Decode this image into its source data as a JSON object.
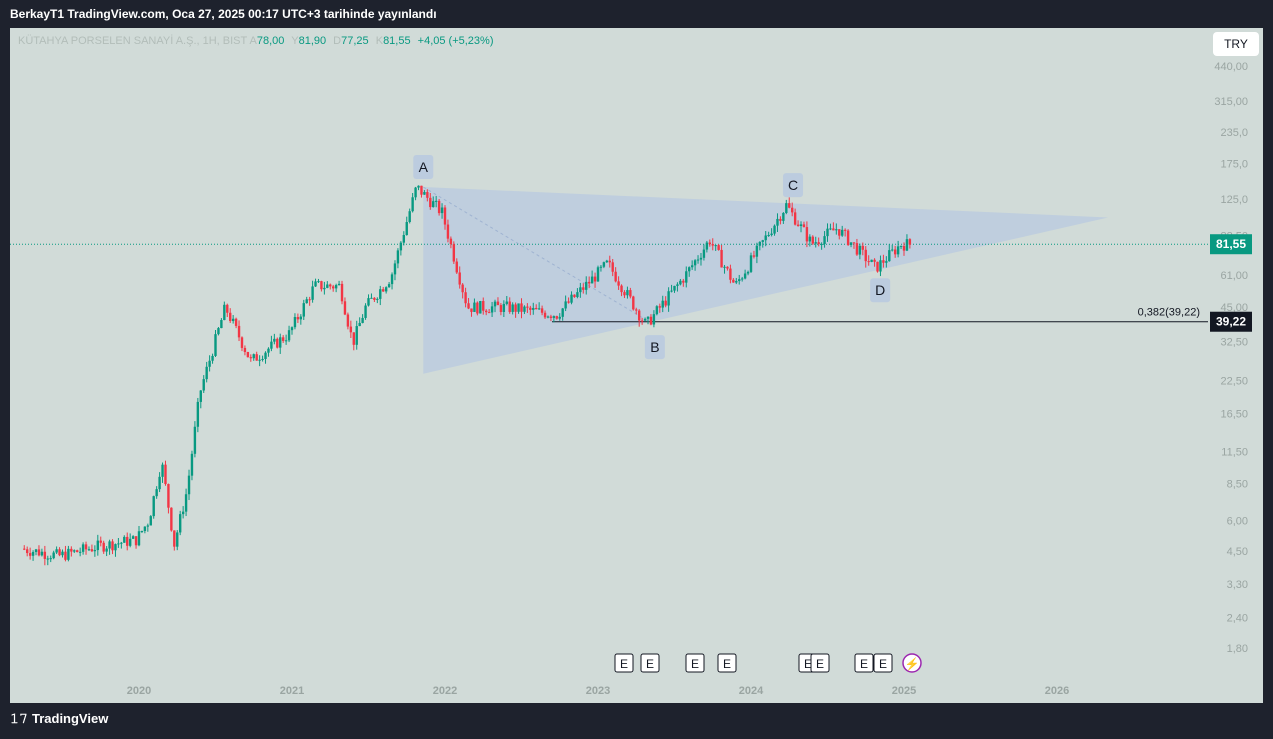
{
  "header": {
    "publish_line": "BerkayT1 TradingView.com, Oca 27, 2025 00:17 UTC+3 tarihinde yayınlandı"
  },
  "legend": {
    "symbol": "KÜTAHYA PORSELEN SANAYİ A.Ş., 1H, BIST",
    "open_label": "A",
    "open_value": "78,00",
    "high_label": "Y",
    "high_value": "81,90",
    "low_label": "D",
    "low_value": "77,25",
    "close_label": "K",
    "close_value": "81,55",
    "change": "+4,05 (+5,23%)"
  },
  "currency_button": "TRY",
  "footer": {
    "brand": "TradingView",
    "logo": "tv-logo-icon"
  },
  "colors": {
    "up": "#089981",
    "down": "#f23645",
    "pattern_fill": "#b8c9e0",
    "price_tag": "#089981",
    "level_tag": "#131722"
  },
  "chart_data": {
    "type": "candlestick",
    "scale": "log",
    "y_ticks": [
      "440,00",
      "315,00",
      "235,0",
      "175,0",
      "125,0",
      "88,50",
      "61,00",
      "45,00",
      "32,50",
      "22,50",
      "16,50",
      "11,50",
      "8,50",
      "6,00",
      "4,50",
      "3,30",
      "2,40",
      "1,80"
    ],
    "x_ticks": [
      "2020",
      "2021",
      "2022",
      "2023",
      "2024",
      "2025",
      "2026"
    ],
    "last_price": "81,55",
    "fib_level": {
      "label": "0,382(39,22)",
      "value": "39,22"
    },
    "pattern_points": [
      {
        "label": "A",
        "date": "2021-11-10",
        "value": 140
      },
      {
        "label": "B",
        "date": "2023-05-15",
        "value": 38
      },
      {
        "label": "C",
        "date": "2024-04-10",
        "value": 118
      },
      {
        "label": "D",
        "date": "2024-11-05",
        "value": 65
      }
    ],
    "triangle": {
      "apex_date": "2026-05-01",
      "upper_start": 140,
      "lower_start": 24,
      "apex_value": 105
    },
    "earnings_markers": [
      "E",
      "E",
      "E",
      "E",
      "E",
      "E",
      "E",
      "E",
      "E"
    ],
    "series": [
      {
        "x": "2019-04",
        "y": 4.6
      },
      {
        "x": "2019-07",
        "y": 4.3
      },
      {
        "x": "2019-10",
        "y": 4.7
      },
      {
        "x": "2020-01",
        "y": 5.0
      },
      {
        "x": "2020-02",
        "y": 6.0
      },
      {
        "x": "2020-03",
        "y": 10.5
      },
      {
        "x": "2020-04",
        "y": 4.8
      },
      {
        "x": "2020-05",
        "y": 8.0
      },
      {
        "x": "2020-06",
        "y": 20.0
      },
      {
        "x": "2020-08",
        "y": 45.0
      },
      {
        "x": "2020-10",
        "y": 27.0
      },
      {
        "x": "2021-01",
        "y": 35.0
      },
      {
        "x": "2021-03",
        "y": 55.0
      },
      {
        "x": "2021-05",
        "y": 55.0
      },
      {
        "x": "2021-06",
        "y": 32.0
      },
      {
        "x": "2021-07",
        "y": 45.0
      },
      {
        "x": "2021-09",
        "y": 60.0
      },
      {
        "x": "2021-11",
        "y": 140.0
      },
      {
        "x": "2022-01",
        "y": 110.0
      },
      {
        "x": "2022-03",
        "y": 45.0
      },
      {
        "x": "2022-06",
        "y": 45.0
      },
      {
        "x": "2022-10",
        "y": 42.0
      },
      {
        "x": "2023-02",
        "y": 68.0
      },
      {
        "x": "2023-05",
        "y": 38.0
      },
      {
        "x": "2023-08",
        "y": 60.0
      },
      {
        "x": "2023-10",
        "y": 85.0
      },
      {
        "x": "2023-12",
        "y": 55.0
      },
      {
        "x": "2024-04",
        "y": 118.0
      },
      {
        "x": "2024-06",
        "y": 82.0
      },
      {
        "x": "2024-08",
        "y": 95.0
      },
      {
        "x": "2024-11",
        "y": 65.0
      },
      {
        "x": "2025-01",
        "y": 81.55
      }
    ]
  }
}
